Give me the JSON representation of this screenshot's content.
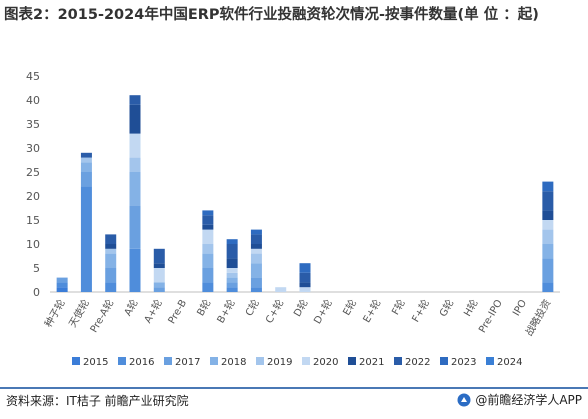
{
  "header": {
    "title": "图表2：2015-2024年中国ERP软件行业投融资轮次情况-按事件数量(单 位 ：起)"
  },
  "footer": {
    "source": "资料来源：IT桔子 前瞻产业研究院",
    "brand": "@前瞻经济学人APP"
  },
  "chart_data": {
    "type": "bar",
    "stacked": true,
    "title": "图表2：2015-2024年中国ERP软件行业投融资轮次情况-按事件数量(单 位 ：起)",
    "xlabel": "",
    "ylabel": "",
    "ylim": [
      0,
      45
    ],
    "yticks": [
      0,
      5,
      10,
      15,
      20,
      25,
      30,
      35,
      40,
      45
    ],
    "grid": false,
    "legend_position": "bottom",
    "categories": [
      "种子轮",
      "天使轮",
      "Pre-A轮",
      "A轮",
      "A+轮",
      "Pre-B",
      "B轮",
      "B+轮",
      "C轮",
      "C+轮",
      "D轮",
      "D+轮",
      "E轮",
      "E+轮",
      "F轮",
      "F+轮",
      "G轮",
      "H轮",
      "Pre-IPO",
      "IPO",
      "战略投资"
    ],
    "series": [
      {
        "name": "2015",
        "color": "#3b7dd8",
        "values": [
          1,
          0,
          0,
          0,
          0,
          0,
          0,
          0,
          0,
          0,
          0,
          0,
          0,
          0,
          0,
          0,
          0,
          0,
          0,
          0,
          0
        ]
      },
      {
        "name": "2016",
        "color": "#4f8ddb",
        "values": [
          1,
          22,
          2,
          9,
          0,
          0,
          2,
          1,
          1,
          0,
          0,
          0,
          0,
          0,
          0,
          0,
          0,
          0,
          0,
          0,
          2
        ]
      },
      {
        "name": "2017",
        "color": "#6aa0e0",
        "values": [
          1,
          3,
          3,
          9,
          1,
          0,
          3,
          1,
          2,
          0,
          0,
          0,
          0,
          0,
          0,
          0,
          0,
          0,
          0,
          0,
          5
        ]
      },
      {
        "name": "2018",
        "color": "#84b2e6",
        "values": [
          0,
          2,
          3,
          7,
          1,
          0,
          3,
          1,
          3,
          0,
          0,
          0,
          0,
          0,
          0,
          0,
          0,
          0,
          0,
          0,
          3
        ]
      },
      {
        "name": "2019",
        "color": "#a3c5ec",
        "values": [
          0,
          1,
          1,
          3,
          0,
          0,
          2,
          1,
          2,
          0,
          0,
          0,
          0,
          0,
          0,
          0,
          0,
          0,
          0,
          0,
          3
        ]
      },
      {
        "name": "2020",
        "color": "#c2d8f2",
        "values": [
          0,
          0,
          0,
          5,
          3,
          0,
          3,
          1,
          1,
          1,
          1,
          0,
          0,
          0,
          0,
          0,
          0,
          0,
          0,
          0,
          2
        ]
      },
      {
        "name": "2021",
        "color": "#1f4e96",
        "values": [
          0,
          0,
          1,
          6,
          1,
          0,
          1,
          2,
          1,
          0,
          1,
          0,
          0,
          0,
          0,
          0,
          0,
          0,
          0,
          0,
          2
        ]
      },
      {
        "name": "2022",
        "color": "#2a5ca8",
        "values": [
          0,
          1,
          2,
          2,
          3,
          0,
          2,
          3,
          2,
          0,
          2,
          0,
          0,
          0,
          0,
          0,
          0,
          0,
          0,
          0,
          4
        ]
      },
      {
        "name": "2023",
        "color": "#2e6bc0",
        "values": [
          0,
          0,
          0,
          0,
          0,
          0,
          1,
          1,
          1,
          0,
          2,
          0,
          0,
          0,
          0,
          0,
          0,
          0,
          0,
          0,
          2
        ]
      },
      {
        "name": "2024",
        "color": "#3a7fd5",
        "values": [
          0,
          0,
          0,
          0,
          0,
          0,
          0,
          0,
          0,
          0,
          0,
          0,
          0,
          0,
          0,
          0,
          0,
          0,
          0,
          0,
          0
        ]
      }
    ]
  }
}
